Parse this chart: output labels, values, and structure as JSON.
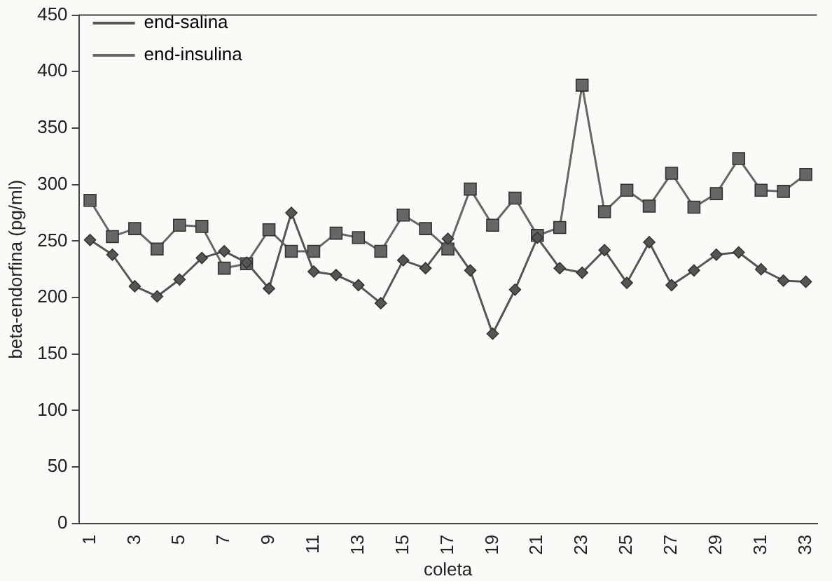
{
  "chart_data": {
    "type": "line",
    "xlabel": "coleta",
    "ylabel": "beta-endorfina (pg/ml)",
    "categories": [
      "1",
      null,
      "3",
      null,
      "5",
      null,
      "7",
      null,
      "9",
      null,
      "11",
      null,
      "13",
      null,
      "15",
      null,
      "17",
      null,
      "19",
      null,
      "21",
      null,
      "23",
      null,
      "25",
      null,
      "27",
      null,
      "29",
      null,
      "31",
      null,
      "33"
    ],
    "series": [
      {
        "name": "end-salina",
        "color": "#555555",
        "marker": "diamond",
        "values": [
          251,
          238,
          210,
          201,
          216,
          235,
          241,
          231,
          208,
          275,
          223,
          220,
          211,
          195,
          233,
          226,
          252,
          224,
          168,
          207,
          253,
          226,
          222,
          242,
          213,
          249,
          211,
          224,
          238,
          240,
          225,
          215,
          214
        ]
      },
      {
        "name": "end-insulina",
        "color": "#666666",
        "marker": "square",
        "values": [
          286,
          254,
          261,
          243,
          264,
          263,
          226,
          230,
          260,
          241,
          241,
          257,
          253,
          241,
          273,
          261,
          243,
          296,
          264,
          288,
          255,
          262,
          388,
          276,
          295,
          281,
          310,
          280,
          292,
          323,
          295,
          294,
          309
        ]
      }
    ],
    "ylim": [
      0,
      450
    ],
    "yticks": [
      0,
      50,
      100,
      150,
      200,
      250,
      300,
      350,
      400,
      450
    ],
    "grid": false,
    "legend": "top left"
  }
}
